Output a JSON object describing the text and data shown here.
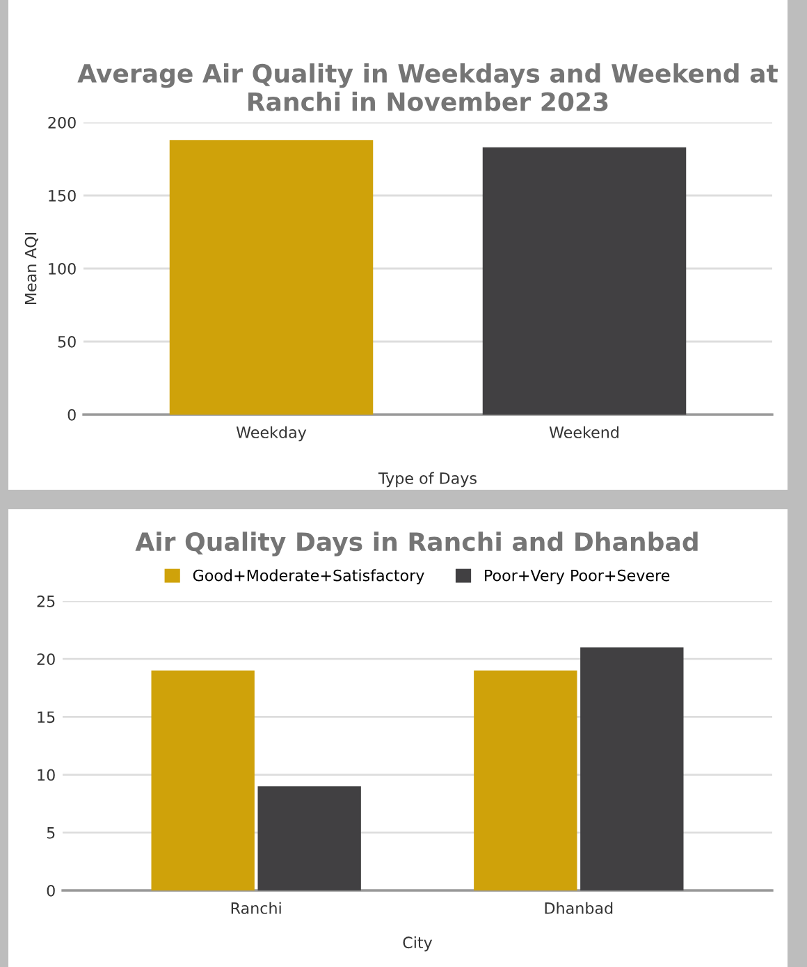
{
  "chart_data": [
    {
      "type": "bar",
      "title": "Average Air Quality in Weekdays and Weekend at Ranchi in November 2023",
      "xlabel": "Type of Days",
      "ylabel": "Mean AQI",
      "categories": [
        "Weekday",
        "Weekend"
      ],
      "colors": [
        "#cfa20a",
        "#414042"
      ],
      "values": [
        188,
        183
      ],
      "ylim": [
        0,
        200
      ],
      "yticks": [
        0,
        50,
        100,
        150,
        200
      ],
      "grid": "y",
      "legend": false
    },
    {
      "type": "bar",
      "title": "Air Quality Days in Ranchi and Dhanbad",
      "xlabel": "City",
      "categories": [
        "Ranchi",
        "Dhanbad"
      ],
      "series": [
        {
          "name": "Good+Moderate+Satisfactory",
          "color": "#cfa20a",
          "values": [
            19,
            19
          ]
        },
        {
          "name": "Poor+Very Poor+Severe",
          "color": "#414042",
          "values": [
            9,
            21
          ]
        }
      ],
      "ylim": [
        0,
        25
      ],
      "yticks": [
        0,
        5,
        10,
        15,
        20,
        25
      ],
      "grid": "y",
      "legend": "top"
    }
  ]
}
